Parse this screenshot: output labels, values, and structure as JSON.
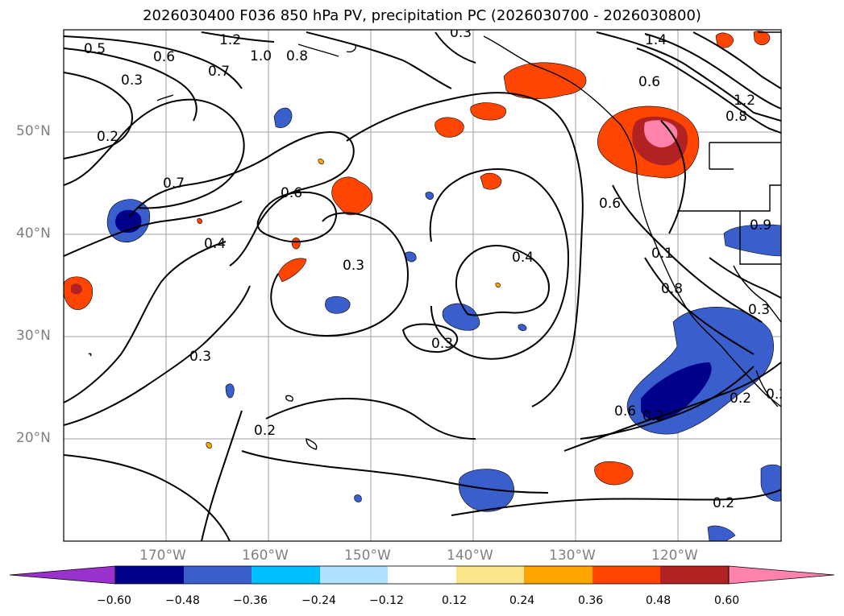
{
  "title": "2026030400 F036 850 hPa PV, precipitation PC (2026030700 - 2026030800)",
  "lat_labels": [
    "50°N",
    "40°N",
    "30°N",
    "20°N"
  ],
  "lon_labels": [
    "170°W",
    "160°W",
    "150°W",
    "140°W",
    "130°W",
    "120°W"
  ],
  "contour_labels": [
    "0.5",
    "0.6",
    "0.7",
    "1.2",
    "1.0",
    "0.8",
    "0.3",
    "0.2",
    "0.7",
    "0.6",
    "0.4",
    "0.3",
    "0.4",
    "0.3",
    "0.2",
    "0.3",
    "0.6",
    "0.2",
    "0.6",
    "0.1",
    "0.8",
    "0.2",
    "0.2",
    "1.4",
    "0.6",
    "0.8",
    "0.3",
    "0.3",
    "0.9",
    "0.2",
    "1.2"
  ],
  "colorbar": {
    "ticks": [
      "−0.60",
      "−0.48",
      "−0.36",
      "−0.24",
      "−0.12",
      "0.12",
      "0.24",
      "0.36",
      "0.48",
      "0.60"
    ],
    "colors": [
      "#9932cc",
      "#00008b",
      "#3a5fcd",
      "#00bfff",
      "#b0e2ff",
      "#ffffff",
      "#fde58a",
      "#ffa500",
      "#ff4500",
      "#b22222",
      "#ff82ab"
    ]
  },
  "chart_data": {
    "type": "map",
    "projection": "lat-lon",
    "lat_range": [
      10,
      60
    ],
    "lon_range": [
      -180,
      -110
    ],
    "fields": [
      "850 hPa PV (contours)",
      "precipitation PC (shaded)"
    ],
    "colorbar_levels": [
      -0.6,
      -0.48,
      -0.36,
      -0.24,
      -0.12,
      0.12,
      0.24,
      0.36,
      0.48,
      0.6
    ]
  }
}
